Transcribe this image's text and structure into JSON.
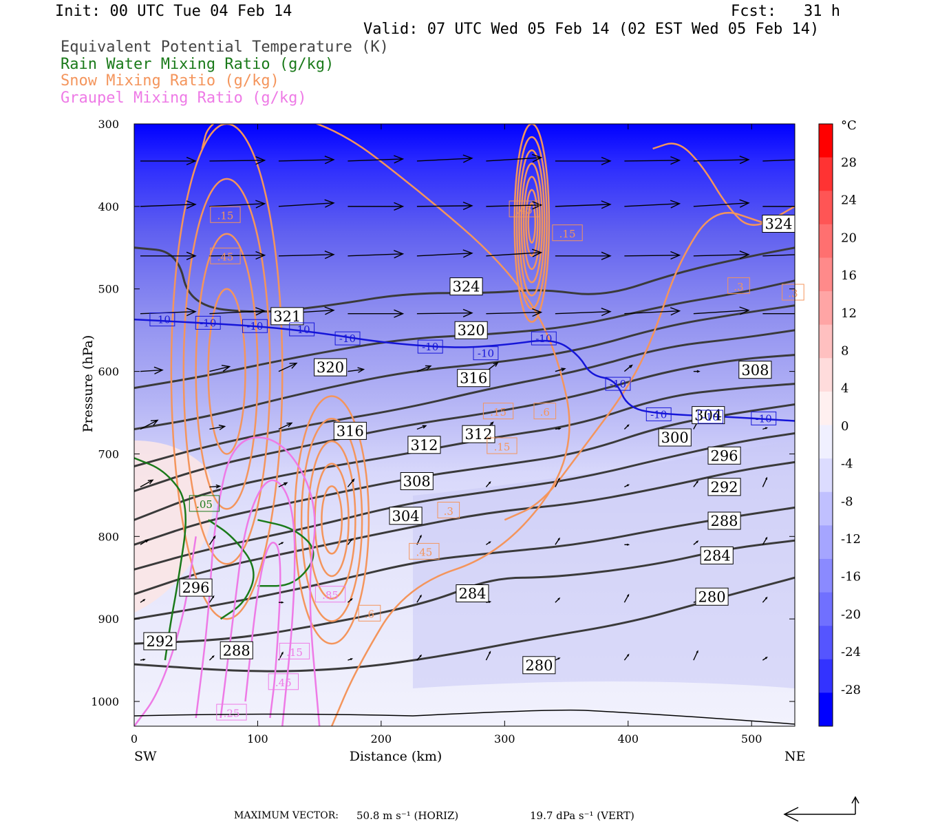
{
  "header": {
    "init": "Init: 00 UTC Tue 04 Feb 14",
    "fcst": "Fcst:   31 h",
    "valid": "Valid: 07 UTC Wed 05 Feb 14 (02 EST Wed 05 Feb 14)"
  },
  "legend": [
    {
      "text": "Equivalent Potential Temperature (K)",
      "color": "#444444"
    },
    {
      "text": "Rain Water Mixing Ratio (g/kg)",
      "color": "#1a7a1a"
    },
    {
      "text": "Snow Mixing Ratio (g/kg)",
      "color": "#f4955c"
    },
    {
      "text": "Graupel Mixing Ratio (g/kg)",
      "color": "#ee7ae6"
    }
  ],
  "footer": {
    "max_label": "MAXIMUM VECTOR:",
    "horiz": "50.8 m s⁻¹ (HORIZ)",
    "vert": "19.7 dPa s⁻¹ (VERT)"
  },
  "chart_data": {
    "type": "contour",
    "xlabel": "Distance (km)",
    "ylabel": "Pressure (hPa)",
    "xlim": [
      0,
      535
    ],
    "ylim": [
      1030,
      300
    ],
    "x_ticks": [
      0,
      100,
      200,
      300,
      400,
      500
    ],
    "y_ticks": [
      300,
      400,
      500,
      600,
      700,
      800,
      900,
      1000
    ],
    "x_end_labels": {
      "left": "SW",
      "right": "NE"
    },
    "colorbar": {
      "unit": "°C",
      "ticks": [
        28,
        24,
        20,
        16,
        12,
        8,
        4,
        0,
        -4,
        -8,
        -12,
        -16,
        -20,
        -24,
        -28
      ],
      "colors": [
        "#ff0000",
        "#ff3333",
        "#ff5555",
        "#ff7070",
        "#ff8a8a",
        "#ffa5a5",
        "#ffc0c0",
        "#ffdcdc",
        "#fff0f0",
        "#f0f0ff",
        "#dcdcff",
        "#c0c0ff",
        "#a5a5ff",
        "#8a8aff",
        "#7070ff",
        "#5555ff",
        "#3333ff",
        "#0000ff"
      ]
    },
    "theta_e_contours": [
      {
        "value": 280,
        "points": [
          [
            0,
            955
          ],
          [
            100,
            965
          ],
          [
            180,
            960
          ],
          [
            250,
            945
          ],
          [
            320,
            925
          ],
          [
            400,
            905
          ],
          [
            460,
            880
          ],
          [
            535,
            850
          ]
        ]
      },
      {
        "value": 284,
        "points": [
          [
            0,
            930
          ],
          [
            80,
            925
          ],
          [
            160,
            905
          ],
          [
            240,
            880
          ],
          [
            290,
            850
          ],
          [
            340,
            850
          ],
          [
            420,
            835
          ],
          [
            480,
            815
          ],
          [
            535,
            805
          ]
        ]
      },
      {
        "value": 288,
        "points": [
          [
            0,
            900
          ],
          [
            80,
            880
          ],
          [
            160,
            855
          ],
          [
            230,
            830
          ],
          [
            290,
            820
          ],
          [
            360,
            810
          ],
          [
            430,
            790
          ],
          [
            490,
            775
          ],
          [
            535,
            765
          ]
        ]
      },
      {
        "value": 292,
        "points": [
          [
            0,
            870
          ],
          [
            60,
            840
          ],
          [
            140,
            815
          ],
          [
            220,
            790
          ],
          [
            290,
            770
          ],
          [
            360,
            760
          ],
          [
            430,
            740
          ],
          [
            490,
            720
          ],
          [
            535,
            710
          ]
        ]
      },
      {
        "value": 296,
        "points": [
          [
            0,
            840
          ],
          [
            60,
            815
          ],
          [
            140,
            790
          ],
          [
            220,
            760
          ],
          [
            290,
            745
          ],
          [
            360,
            730
          ],
          [
            430,
            705
          ],
          [
            490,
            685
          ],
          [
            535,
            675
          ]
        ]
      },
      {
        "value": 300,
        "points": [
          [
            0,
            810
          ],
          [
            60,
            780
          ],
          [
            140,
            755
          ],
          [
            220,
            730
          ],
          [
            290,
            715
          ],
          [
            360,
            700
          ],
          [
            430,
            665
          ],
          [
            490,
            650
          ],
          [
            535,
            640
          ]
        ]
      },
      {
        "value": 304,
        "points": [
          [
            0,
            780
          ],
          [
            60,
            745
          ],
          [
            140,
            720
          ],
          [
            220,
            700
          ],
          [
            290,
            680
          ],
          [
            360,
            665
          ],
          [
            430,
            630
          ],
          [
            490,
            620
          ],
          [
            535,
            615
          ]
        ]
      },
      {
        "value": 308,
        "points": [
          [
            0,
            745
          ],
          [
            60,
            715
          ],
          [
            140,
            690
          ],
          [
            220,
            665
          ],
          [
            290,
            650
          ],
          [
            360,
            630
          ],
          [
            430,
            600
          ],
          [
            490,
            585
          ],
          [
            535,
            580
          ]
        ]
      },
      {
        "value": 312,
        "points": [
          [
            0,
            715
          ],
          [
            60,
            690
          ],
          [
            140,
            665
          ],
          [
            220,
            645
          ],
          [
            290,
            620
          ],
          [
            360,
            600
          ],
          [
            430,
            570
          ],
          [
            490,
            560
          ],
          [
            535,
            550
          ]
        ]
      },
      {
        "value": 316,
        "points": [
          [
            0,
            670
          ],
          [
            60,
            655
          ],
          [
            140,
            625
          ],
          [
            220,
            600
          ],
          [
            290,
            590
          ],
          [
            360,
            575
          ],
          [
            430,
            545
          ],
          [
            490,
            530
          ],
          [
            535,
            520
          ]
        ]
      },
      {
        "value": 320,
        "points": [
          [
            0,
            620
          ],
          [
            60,
            605
          ],
          [
            140,
            580
          ],
          [
            220,
            560
          ],
          [
            290,
            555
          ],
          [
            360,
            545
          ],
          [
            430,
            520
          ],
          [
            490,
            505
          ],
          [
            535,
            490
          ]
        ]
      },
      {
        "value": 324,
        "points": [
          [
            0,
            450
          ],
          [
            35,
            455
          ],
          [
            45,
            520
          ],
          [
            100,
            530
          ],
          [
            160,
            520
          ],
          [
            220,
            505
          ],
          [
            290,
            505
          ],
          [
            330,
            500
          ],
          [
            380,
            510
          ],
          [
            440,
            480
          ],
          [
            500,
            460
          ],
          [
            535,
            450
          ]
        ]
      }
    ],
    "contour_labels": [
      {
        "text": "324",
        "x": 258,
        "p": 497,
        "kind": "theta"
      },
      {
        "text": "324",
        "x": 511,
        "p": 421,
        "kind": "theta"
      },
      {
        "text": "321",
        "x": 113,
        "p": 533,
        "kind": "theta"
      },
      {
        "text": "320",
        "x": 262,
        "p": 550,
        "kind": "theta"
      },
      {
        "text": "320",
        "x": 148,
        "p": 595,
        "kind": "theta"
      },
      {
        "text": "316",
        "x": 264,
        "p": 608,
        "kind": "theta"
      },
      {
        "text": "316",
        "x": 164,
        "p": 672,
        "kind": "theta"
      },
      {
        "text": "312",
        "x": 224,
        "p": 689,
        "kind": "theta"
      },
      {
        "text": "312",
        "x": 268,
        "p": 676,
        "kind": "theta"
      },
      {
        "text": "308",
        "x": 218,
        "p": 733,
        "kind": "theta"
      },
      {
        "text": "308",
        "x": 492,
        "p": 598,
        "kind": "theta"
      },
      {
        "text": "304",
        "x": 209,
        "p": 775,
        "kind": "theta"
      },
      {
        "text": "304",
        "x": 454,
        "p": 653,
        "kind": "theta"
      },
      {
        "text": "300",
        "x": 427,
        "p": 680,
        "kind": "theta"
      },
      {
        "text": "296",
        "x": 467,
        "p": 702,
        "kind": "theta"
      },
      {
        "text": "296",
        "x": 39,
        "p": 862,
        "kind": "theta"
      },
      {
        "text": "292",
        "x": 467,
        "p": 740,
        "kind": "theta"
      },
      {
        "text": "292",
        "x": 10,
        "p": 927,
        "kind": "theta"
      },
      {
        "text": "288",
        "x": 467,
        "p": 781,
        "kind": "theta"
      },
      {
        "text": "288",
        "x": 72,
        "p": 938,
        "kind": "theta"
      },
      {
        "text": "284",
        "x": 461,
        "p": 823,
        "kind": "theta"
      },
      {
        "text": "284",
        "x": 263,
        "p": 869,
        "kind": "theta"
      },
      {
        "text": "280",
        "x": 457,
        "p": 873,
        "kind": "theta"
      },
      {
        "text": "280",
        "x": 317,
        "p": 956,
        "kind": "theta"
      },
      {
        "text": "-10",
        "x": 15,
        "p": 537,
        "kind": "temp"
      },
      {
        "text": "-10",
        "x": 52,
        "p": 541,
        "kind": "temp"
      },
      {
        "text": "-10",
        "x": 90,
        "p": 545,
        "kind": "temp"
      },
      {
        "text": "-10",
        "x": 128,
        "p": 549,
        "kind": "temp"
      },
      {
        "text": "-10",
        "x": 165,
        "p": 560,
        "kind": "temp"
      },
      {
        "text": "-10",
        "x": 232,
        "p": 570,
        "kind": "temp"
      },
      {
        "text": "-10",
        "x": 277,
        "p": 578,
        "kind": "temp"
      },
      {
        "text": "-10",
        "x": 324,
        "p": 560,
        "kind": "temp"
      },
      {
        "text": "-10",
        "x": 384,
        "p": 615,
        "kind": "temp"
      },
      {
        "text": "-10",
        "x": 417,
        "p": 652,
        "kind": "temp"
      },
      {
        "text": "-10",
        "x": 459,
        "p": 655,
        "kind": "temp"
      },
      {
        "text": "-10",
        "x": 502,
        "p": 657,
        "kind": "temp"
      },
      {
        "text": ".15",
        "x": 64,
        "p": 410,
        "kind": "snow"
      },
      {
        "text": ".45",
        "x": 64,
        "p": 460,
        "kind": "snow"
      },
      {
        "text": ".45",
        "x": 306,
        "p": 403,
        "kind": "snow"
      },
      {
        "text": ".15",
        "x": 341,
        "p": 432,
        "kind": "snow"
      },
      {
        "text": ".3",
        "x": 483,
        "p": 496,
        "kind": "snow"
      },
      {
        "text": ".3",
        "x": 527,
        "p": 504,
        "kind": "snow"
      },
      {
        "text": ".15",
        "x": 285,
        "p": 648,
        "kind": "snow"
      },
      {
        "text": ".6",
        "x": 326,
        "p": 648,
        "kind": "snow"
      },
      {
        "text": ".15",
        "x": 288,
        "p": 690,
        "kind": "snow"
      },
      {
        "text": ".3",
        "x": 248,
        "p": 768,
        "kind": "snow"
      },
      {
        "text": ".45",
        "x": 225,
        "p": 818,
        "kind": "snow"
      },
      {
        "text": ".6",
        "x": 184,
        "p": 893,
        "kind": "snow"
      },
      {
        "text": ".05",
        "x": 47,
        "p": 760,
        "kind": "rain"
      },
      {
        "text": ".85",
        "x": 149,
        "p": 870,
        "kind": "graupel"
      },
      {
        "text": ".15",
        "x": 120,
        "p": 939,
        "kind": "graupel"
      },
      {
        "text": ".45",
        "x": 111,
        "p": 976,
        "kind": "graupel"
      },
      {
        "text": ".25",
        "x": 69,
        "p": 1013,
        "kind": "graupel"
      }
    ],
    "snow_cores": [
      {
        "x": 322,
        "p": 420,
        "rx": 14,
        "rp": 120,
        "rings": 7
      },
      {
        "x": 75,
        "p": 600,
        "rx": 45,
        "rp": 300,
        "rings": 4
      },
      {
        "x": 160,
        "p": 780,
        "rx": 30,
        "rp": 150,
        "rings": 5
      }
    ],
    "wind_vectors_sample": [
      {
        "x": 5,
        "p": 345,
        "u": 45,
        "w": 0
      },
      {
        "x": 120,
        "p": 345,
        "u": 50,
        "w": 0
      },
      {
        "x": 230,
        "p": 355,
        "u": 50,
        "w": 0
      },
      {
        "x": 340,
        "p": 345,
        "u": 50,
        "w": 0
      },
      {
        "x": 460,
        "p": 345,
        "u": 50,
        "w": 0
      }
    ]
  }
}
